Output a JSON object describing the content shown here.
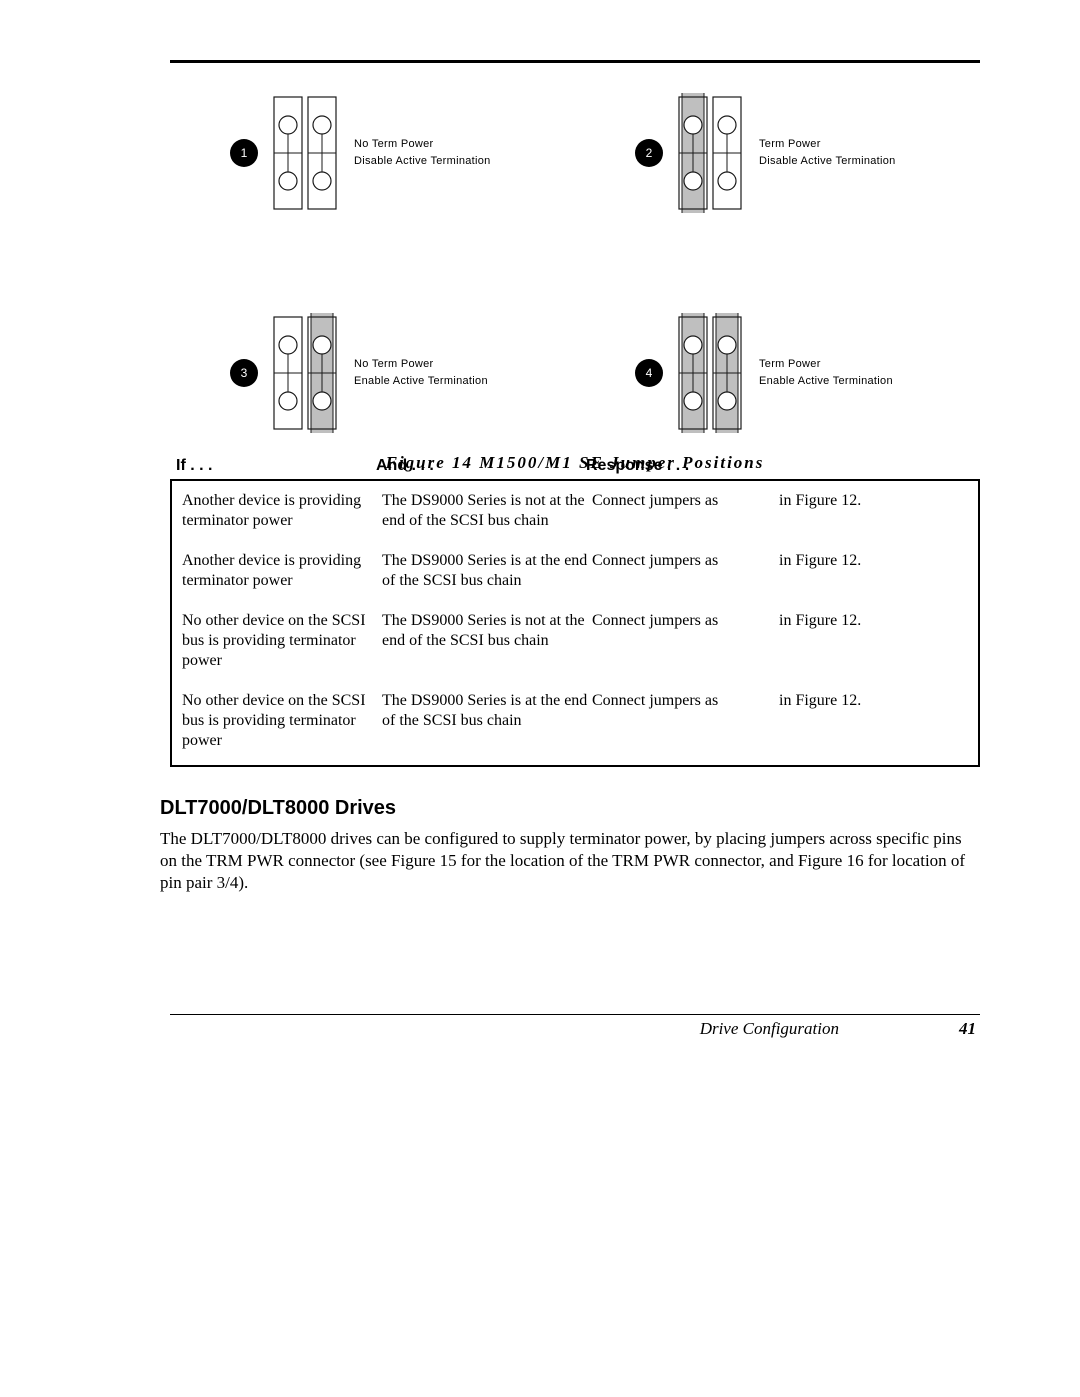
{
  "colors": {
    "text": "#000000",
    "bg": "#ffffff",
    "badge_bg": "#000000",
    "badge_text": "#ffffff",
    "jumper_fill": "#bfbfbf",
    "jumper_stroke": "#1a1a1a"
  },
  "diagrams": [
    {
      "badge": "1",
      "line1": "No Term Power",
      "line2": "Disable Active Termination",
      "j1": false,
      "j2": false
    },
    {
      "badge": "2",
      "line1": "Term Power",
      "line2": "Disable Active Termination",
      "j1": true,
      "j2": false
    },
    {
      "badge": "3",
      "line1": "No Term Power",
      "line2": "Enable Active Termination",
      "j1": false,
      "j2": true
    },
    {
      "badge": "4",
      "line1": "Term Power",
      "line2": "Enable Active Termination",
      "j1": true,
      "j2": true
    }
  ],
  "figure_caption": "Figure 14   M1500/M1 SE Jumper Positions",
  "table": {
    "head": {
      "if": "If . . .",
      "and": "And . . .",
      "resp": "Response . . ."
    },
    "rows": [
      {
        "if": "Another device is providing terminator power",
        "and": "The DS9000 Series is not at the end of the SCSI bus chain",
        "resp_left": "Connect jumpers as",
        "resp_right": "in Figure 12."
      },
      {
        "if": "Another device is providing terminator power",
        "and": "The DS9000 Series is at the end of the SCSI bus chain",
        "resp_left": "Connect jumpers as",
        "resp_right": "in Figure 12."
      },
      {
        "if": "No other device on the SCSI bus is providing terminator power",
        "and": "The DS9000 Series is not at the end of the SCSI bus chain",
        "resp_left": "Connect jumpers as",
        "resp_right": "in Figure 12."
      },
      {
        "if": "No other device on the SCSI bus is providing terminator power",
        "and": "The DS9000 Series is at the end of the SCSI bus chain",
        "resp_left": "Connect jumpers as",
        "resp_right": "in Figure 12."
      }
    ]
  },
  "section_heading": "DLT7000/DLT8000 Drives",
  "body_para": "The DLT7000/DLT8000 drives can be configured to supply terminator power, by placing jumpers across specific pins on the TRM PWR connector (see Figure 15 for the location of the TRM PWR connector, and Figure 16 for location of pin pair 3/4).",
  "footer": {
    "title": "Drive Configuration",
    "page": "41"
  },
  "jumper_svg": {
    "width": 72,
    "height": 120,
    "outer_stroke": "#1a1a1a",
    "col_stroke": "#1a1a1a",
    "pin_stroke": "#1a1a1a",
    "jumper_fill": "#bfbfbf"
  }
}
